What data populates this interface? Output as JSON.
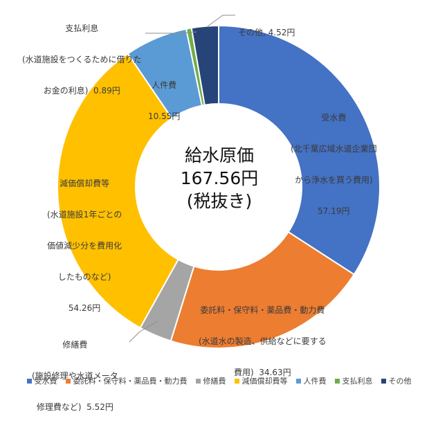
{
  "chart_data": {
    "type": "pie",
    "variant": "donut",
    "start": "12 o'clock, clockwise",
    "center_text": [
      "給水原価",
      "167.56円",
      "(税抜き)"
    ],
    "series": [
      {
        "name": "受水費",
        "value": 57.19,
        "color": "#4472C4",
        "label_lines": [
          "受水費",
          "(北千葉広域水道企業団",
          "から浄水を買う費用)",
          "57.19円"
        ]
      },
      {
        "name": "委託料・保守料・薬品費・動力費",
        "value": 34.63,
        "color": "#ED7D31",
        "label_lines": [
          "委託料・保守料・薬品費・動力費",
          "(水道水の製造、供給などに要する",
          "費用)  34.63円"
        ]
      },
      {
        "name": "修繕費",
        "value": 5.52,
        "color": "#A5A5A5",
        "label_lines": [
          "修繕費",
          "(施設修理や水道メータ",
          "修理費など)  5.52円"
        ]
      },
      {
        "name": "減価償却費等",
        "value": 54.26,
        "color": "#FFC000",
        "label_lines": [
          "減価償却費等",
          "(水道施設1年ごとの",
          "価値減少分を費用化",
          "したものなど)",
          "54.26円"
        ]
      },
      {
        "name": "人件費",
        "value": 10.55,
        "color": "#5B9BD5",
        "label_lines": [
          "人件費",
          "10.55円"
        ]
      },
      {
        "name": "支払利息",
        "value": 0.89,
        "color": "#70AD47",
        "label_lines": [
          "支払利息",
          "(水道施設をつくるために借りた",
          "お金の利息)  0.89円"
        ]
      },
      {
        "name": "その他",
        "value": 4.52,
        "color": "#264478",
        "label_lines": [
          "その他, 4.52円"
        ]
      }
    ],
    "legend_position": "bottom"
  }
}
